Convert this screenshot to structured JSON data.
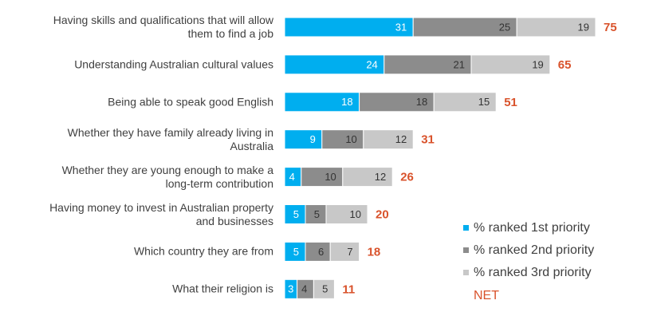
{
  "chart_data": {
    "type": "stacked-bar-horizontal",
    "categories": [
      "Having skills and qualifications that will allow them to find a job",
      "Understanding Australian cultural values",
      "Being able to speak good English",
      "Whether they have family already living in Australia",
      "Whether they are young enough to make a long-term contribution",
      "Having money to invest in Australian property and businesses",
      "Which country they are from",
      "What their religion is"
    ],
    "series": [
      {
        "name": "% ranked 1st priority",
        "color": "#00aeef",
        "values": [
          31,
          24,
          18,
          9,
          4,
          5,
          5,
          3
        ]
      },
      {
        "name": "% ranked 2nd priority",
        "color": "#8c8c8c",
        "values": [
          25,
          21,
          18,
          10,
          10,
          5,
          6,
          4
        ]
      },
      {
        "name": "% ranked 3rd priority",
        "color": "#c8c8c8",
        "values": [
          19,
          19,
          15,
          12,
          12,
          10,
          7,
          5
        ]
      }
    ],
    "net": {
      "name": "NET",
      "color": "#d9532c",
      "values": [
        75,
        65,
        51,
        31,
        26,
        20,
        18,
        11
      ]
    }
  }
}
